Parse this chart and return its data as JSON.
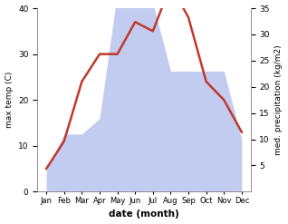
{
  "months": [
    "Jan",
    "Feb",
    "Mar",
    "Apr",
    "May",
    "Jun",
    "Jul",
    "Aug",
    "Sep",
    "Oct",
    "Nov",
    "Dec"
  ],
  "temperature": [
    5,
    11,
    24,
    30,
    30,
    37,
    35,
    45,
    38,
    24,
    20,
    13
  ],
  "precipitation": [
    4,
    11,
    11,
    14,
    38,
    39,
    36,
    23,
    23,
    23,
    23,
    10
  ],
  "temp_color": "#c0392b",
  "precip_color_fill": "#b8c4ee",
  "temp_ylim": [
    0,
    40
  ],
  "temp_yticks": [
    0,
    10,
    20,
    30,
    40
  ],
  "precip_ylim": [
    0,
    35
  ],
  "precip_yticks": [
    5,
    10,
    15,
    20,
    25,
    30,
    35
  ],
  "xlabel": "date (month)",
  "ylabel_left": "max temp (C)",
  "ylabel_right": "med. precipitation (kg/m2)",
  "bg_color": "#ffffff"
}
